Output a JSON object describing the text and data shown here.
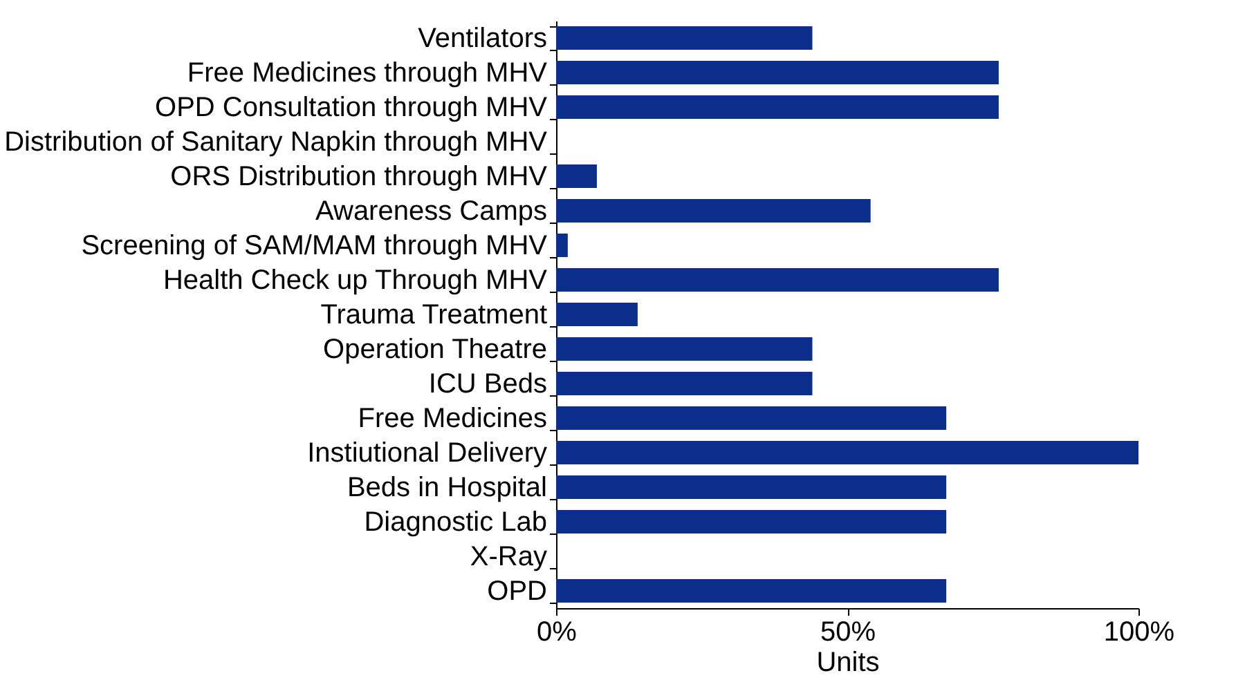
{
  "chart_data": {
    "type": "bar",
    "orientation": "horizontal",
    "xlabel": "Units",
    "categories": [
      "Ventilators",
      "Free Medicines through MHV",
      "OPD Consultation through MHV",
      "Distribution of Sanitary Napkin through MHV",
      "ORS Distribution through MHV",
      "Awareness Camps",
      "Screening of SAM/MAM through MHV",
      "Health Check up Through MHV",
      "Trauma Treatment",
      "Operation Theatre",
      "ICU Beds",
      "Free Medicines",
      "Instiutional Delivery",
      "Beds in Hospital",
      "Diagnostic Lab",
      "X-Ray",
      "OPD"
    ],
    "values": [
      44,
      76,
      76,
      0,
      7,
      54,
      2,
      76,
      14,
      44,
      44,
      67,
      100,
      67,
      67,
      0,
      67
    ],
    "color": "#0b2e8a",
    "xlim": [
      0,
      100
    ],
    "xticks": [
      {
        "value": 0,
        "label": "0%"
      },
      {
        "value": 50,
        "label": "50%"
      },
      {
        "value": 100,
        "label": "100%"
      }
    ],
    "grid": false
  }
}
